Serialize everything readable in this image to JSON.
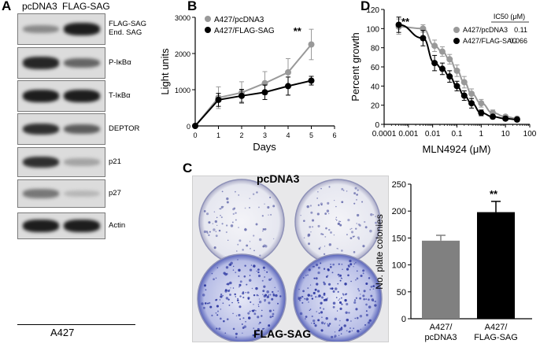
{
  "panelA": {
    "letter": "A",
    "lanes": [
      "pcDNA3",
      "FLAG-SAG"
    ],
    "blots": [
      {
        "labels": [
          "FLAG-SAG",
          "End. SAG"
        ],
        "lane1": 0.35,
        "lane2": 0.95
      },
      {
        "labels": [
          "P-IκBα"
        ],
        "lane1": 0.9,
        "lane2": 0.55
      },
      {
        "labels": [
          "T-IκBα"
        ],
        "lane1": 0.95,
        "lane2": 0.95
      },
      {
        "labels": [
          "DEPTOR"
        ],
        "lane1": 0.85,
        "lane2": 0.6
      },
      {
        "labels": [
          "p21"
        ],
        "lane1": 0.85,
        "lane2": 0.2
      },
      {
        "labels": [
          "p27"
        ],
        "lane1": 0.45,
        "lane2": 0.1
      },
      {
        "labels": [
          "Actin"
        ],
        "lane1": 0.95,
        "lane2": 0.95
      }
    ],
    "cell_line": "A427"
  },
  "panelB": {
    "letter": "B",
    "significance": "**",
    "chart_data": {
      "type": "line",
      "xlabel": "Days",
      "ylabel": "Light units",
      "xlim": [
        0,
        6
      ],
      "ylim": [
        0,
        3000
      ],
      "xticks": [
        "0",
        "1",
        "2",
        "3",
        "4",
        "5",
        "6"
      ],
      "yticks": [
        "0",
        "1000",
        "2000",
        "3000"
      ],
      "legend_position": "top-left",
      "series": [
        {
          "name": "A427/pcDNA3",
          "color": "#999999",
          "x": [
            0,
            1,
            2,
            3,
            4,
            5
          ],
          "y": [
            0,
            780,
            920,
            1180,
            1480,
            2250
          ],
          "err": [
            0,
            300,
            300,
            320,
            380,
            420
          ]
        },
        {
          "name": "A427/FLAG-SAG",
          "color": "#000000",
          "x": [
            0,
            1,
            2,
            3,
            4,
            5
          ],
          "y": [
            0,
            720,
            830,
            930,
            1100,
            1250
          ],
          "err": [
            0,
            180,
            180,
            200,
            250,
            120
          ]
        }
      ]
    }
  },
  "panelC": {
    "letter": "C",
    "photo_top_label": "pcDNA3",
    "photo_bottom_label": "FLAG-SAG",
    "significance": "**",
    "chart_data": {
      "type": "bar",
      "categories": [
        "A427/\npcDNA3",
        "A427/\nFLAG-SAG"
      ],
      "category_lines": [
        [
          "A427/",
          "pcDNA3"
        ],
        [
          "A427/",
          "FLAG-SAG"
        ]
      ],
      "values": [
        145,
        198
      ],
      "err": [
        10,
        20
      ],
      "colors": [
        "#808080",
        "#000000"
      ],
      "ylabel": "No. plate colonies",
      "ylim": [
        0,
        250
      ],
      "yticks": [
        "0",
        "50",
        "100",
        "150",
        "200",
        "250"
      ]
    }
  },
  "panelD": {
    "letter": "D",
    "significance": "**",
    "ic50_header": "IC50 (μM)",
    "chart_data": {
      "type": "line",
      "xlabel": "MLN4924 (μM)",
      "ylabel": "Percent growth",
      "xscale": "log",
      "xlim": [
        0.0001,
        100
      ],
      "ylim": [
        0,
        120
      ],
      "xticks": [
        "0.0001",
        "0.001",
        "0.01",
        "0.1",
        "1",
        "10",
        "100"
      ],
      "yticks": [
        "0",
        "20",
        "40",
        "60",
        "80",
        "100",
        "120"
      ],
      "legend_position": "top-right",
      "series": [
        {
          "name": "A427/pcDNA3",
          "ic50": "0.11",
          "color": "#999999",
          "x": [
            0.0004,
            0.004,
            0.012,
            0.025,
            0.05,
            0.1,
            0.2,
            0.4,
            1,
            3,
            10,
            30
          ],
          "y": [
            102,
            100,
            82,
            76,
            68,
            56,
            44,
            32,
            22,
            12,
            8,
            6
          ],
          "err": [
            8,
            4,
            6,
            5,
            5,
            6,
            6,
            5,
            4,
            3,
            2,
            2
          ]
        },
        {
          "name": "A427/FLAG-SAG",
          "ic50": "0.066",
          "color": "#000000",
          "x": [
            0.0004,
            0.004,
            0.012,
            0.025,
            0.05,
            0.1,
            0.2,
            0.4,
            1,
            3,
            10,
            30
          ],
          "y": [
            104,
            90,
            64,
            58,
            50,
            40,
            30,
            22,
            12,
            8,
            6,
            5
          ],
          "err": [
            8,
            8,
            8,
            6,
            6,
            5,
            5,
            5,
            3,
            2,
            2,
            2
          ]
        }
      ]
    }
  }
}
